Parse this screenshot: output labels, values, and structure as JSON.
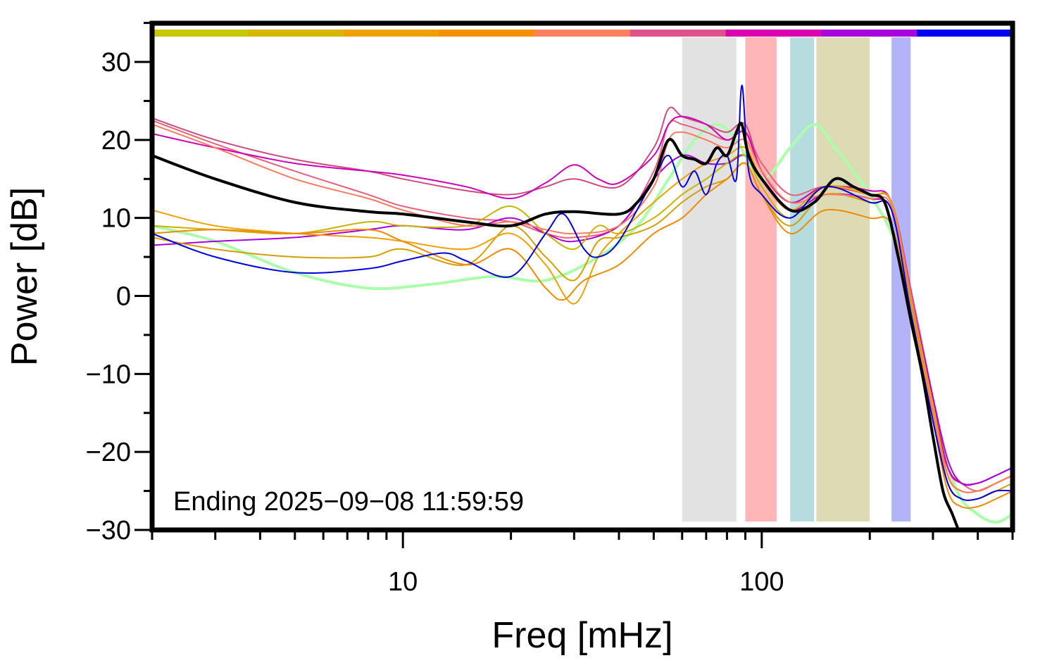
{
  "chart_data": {
    "type": "line",
    "title": "",
    "xlabel": "Freq [mHz]",
    "ylabel": "Power [dB]",
    "x_scale": "log",
    "xlim": [
      2,
      500
    ],
    "ylim": [
      -30,
      35
    ],
    "x_tick_labels": [
      "10",
      "100"
    ],
    "y_tick_labels": [
      "30",
      "20",
      "10",
      "0",
      "−10",
      "−20",
      "−30"
    ],
    "grid": false,
    "legend": "none",
    "annotation": "Ending 2025−09−08 11:59:59",
    "shaded_bands": [
      {
        "x": [
          60,
          85
        ],
        "color": "#e2e2e2"
      },
      {
        "x": [
          90,
          110
        ],
        "color": "#ffb6b6"
      },
      {
        "x": [
          120,
          140
        ],
        "color": "#b6dcdf"
      },
      {
        "x": [
          142,
          200
        ],
        "color": "#dcdbb3"
      },
      {
        "x": [
          230,
          260
        ],
        "color": "#b3b3f7"
      }
    ],
    "top_color_bar": [
      "#c8c800",
      "#d7b800",
      "#f0a000",
      "#f39000",
      "#ff8060",
      "#e0508a",
      "#dd00b0",
      "#aa00dd",
      "#0000f0"
    ],
    "series": [
      {
        "color": "#aaffaa",
        "width": 4,
        "x": [
          2,
          3,
          5,
          8,
          12,
          18,
          25,
          35,
          45,
          55,
          65,
          75,
          85,
          100,
          120,
          140,
          160,
          180,
          200,
          230,
          260,
          300,
          350,
          400,
          450,
          500
        ],
        "y": [
          9,
          7,
          3,
          1,
          1.5,
          2.5,
          2,
          5,
          9,
          15,
          20,
          22,
          20,
          15,
          19,
          22,
          19,
          16,
          13,
          8,
          0,
          -15,
          -25,
          -28,
          -29,
          -28
        ]
      },
      {
        "color": "#e8607a",
        "width": 2,
        "x": [
          2,
          3,
          5,
          8,
          10,
          15,
          20,
          25,
          30,
          40,
          50,
          55,
          60,
          70,
          80,
          90,
          100,
          120,
          150,
          200,
          230,
          260,
          300,
          330,
          360,
          400,
          450,
          500
        ],
        "y": [
          22.5,
          19.5,
          16,
          13,
          11.5,
          10,
          9.5,
          8,
          7.5,
          9,
          16,
          22,
          22,
          21,
          20,
          21,
          17,
          13,
          14,
          13,
          12,
          0,
          -15,
          -22,
          -24,
          -25,
          -24,
          -23
        ]
      },
      {
        "color": "#d04a80",
        "width": 2,
        "x": [
          2,
          3,
          5,
          8,
          10,
          15,
          20,
          25,
          30,
          40,
          50,
          55,
          60,
          70,
          80,
          90,
          100,
          120,
          150,
          200,
          230,
          260,
          300,
          330,
          360,
          400,
          450,
          500
        ],
        "y": [
          22.8,
          20,
          17.5,
          16,
          15,
          13.5,
          13,
          14,
          15,
          14,
          19,
          24,
          23,
          22,
          21,
          22,
          16,
          12,
          14,
          13,
          12,
          1,
          -13,
          -22,
          -24,
          -24,
          -23,
          -22
        ]
      },
      {
        "color": "#cc00bb",
        "width": 2,
        "x": [
          2,
          3,
          5,
          8,
          10,
          15,
          20,
          25,
          30,
          35,
          40,
          50,
          55,
          60,
          70,
          80,
          90,
          100,
          120,
          150,
          200,
          230,
          260,
          300,
          330,
          360,
          400,
          450,
          500
        ],
        "y": [
          20.8,
          19,
          17,
          16,
          15.5,
          14,
          12.5,
          14.5,
          16.8,
          15,
          14.5,
          18,
          22,
          23,
          22,
          20,
          21,
          16,
          12,
          14,
          13.5,
          12,
          0,
          -14,
          -22,
          -24,
          -24,
          -23,
          -22
        ]
      },
      {
        "color": "#aa00dd",
        "width": 2,
        "x": [
          2,
          3,
          5,
          8,
          10,
          15,
          20,
          25,
          30,
          40,
          50,
          60,
          70,
          80,
          90,
          100,
          120,
          150,
          200,
          230,
          260,
          300,
          330,
          360,
          400,
          450,
          500
        ],
        "y": [
          6.5,
          7,
          7.5,
          8.5,
          9,
          8.5,
          10,
          8,
          7,
          9,
          15,
          18,
          17,
          17,
          18,
          15,
          11,
          13,
          12.5,
          11,
          0,
          -13,
          -21,
          -24,
          -24,
          -23,
          -22
        ]
      },
      {
        "color": "#c8b400",
        "width": 2,
        "x": [
          2,
          3,
          5,
          8,
          10,
          15,
          20,
          25,
          30,
          35,
          40,
          50,
          60,
          70,
          80,
          90,
          100,
          120,
          150,
          200,
          230,
          260,
          300,
          330,
          360,
          400,
          450,
          500
        ],
        "y": [
          9,
          8.5,
          8,
          9.5,
          9,
          9,
          11.5,
          8,
          6,
          9,
          8,
          10,
          13,
          15,
          17,
          18,
          14,
          10,
          14,
          13,
          12,
          0,
          -14,
          -23,
          -25,
          -25,
          -24,
          -23
        ]
      },
      {
        "color": "#d4a000",
        "width": 2,
        "x": [
          2,
          3,
          5,
          8,
          10,
          15,
          20,
          25,
          30,
          35,
          40,
          50,
          60,
          70,
          80,
          90,
          100,
          120,
          150,
          200,
          230,
          260,
          300,
          330,
          360,
          400,
          450,
          500
        ],
        "y": [
          7.5,
          6,
          5,
          5,
          6,
          4,
          9,
          5,
          2,
          7,
          7.5,
          9,
          12,
          14,
          15,
          17,
          13,
          9,
          13,
          12,
          11,
          -1,
          -15,
          -24,
          -26,
          -26,
          -25,
          -24
        ]
      },
      {
        "color": "#f0a000",
        "width": 2,
        "x": [
          2,
          3,
          5,
          8,
          10,
          15,
          20,
          25,
          30,
          35,
          40,
          50,
          60,
          70,
          80,
          90,
          100,
          120,
          150,
          200,
          230,
          260,
          300,
          330,
          360,
          400,
          450,
          500
        ],
        "y": [
          11,
          9,
          8,
          7.5,
          7,
          6,
          8,
          4,
          -1,
          5,
          8,
          12,
          15,
          17,
          18,
          19,
          15,
          11,
          14,
          13,
          12,
          0,
          -14,
          -23,
          -25,
          -25,
          -24,
          -23
        ]
      },
      {
        "color": "#f08a00",
        "width": 2,
        "x": [
          2,
          3,
          5,
          8,
          10,
          15,
          20,
          25,
          28,
          32,
          40,
          50,
          60,
          70,
          80,
          90,
          100,
          120,
          150,
          200,
          230,
          260,
          300,
          330,
          360,
          400,
          450,
          500
        ],
        "y": [
          8,
          8.5,
          8,
          8.5,
          7,
          4,
          6,
          1,
          -0.5,
          2,
          4,
          8,
          10,
          13,
          15,
          17,
          13,
          8,
          11,
          10,
          9,
          -2,
          -16,
          -25,
          -27,
          -27,
          -26,
          -25
        ]
      },
      {
        "color": "#ff7a60",
        "width": 2,
        "x": [
          2,
          3,
          5,
          8,
          10,
          15,
          20,
          25,
          30,
          40,
          50,
          55,
          60,
          70,
          80,
          90,
          100,
          120,
          150,
          200,
          230,
          260,
          300,
          330,
          360,
          400,
          450,
          500
        ],
        "y": [
          22,
          19,
          15,
          12.5,
          11,
          9,
          9.5,
          8.5,
          8,
          9,
          14,
          20,
          21,
          20,
          19,
          20,
          16,
          12,
          13,
          12.5,
          11.5,
          0,
          -15,
          -23,
          -25,
          -25,
          -24,
          -23
        ]
      },
      {
        "color": "#0000e0",
        "width": 2,
        "x": [
          2,
          3,
          5,
          8,
          10,
          13,
          15,
          20,
          25,
          28,
          32,
          35,
          40,
          50,
          55,
          60,
          65,
          70,
          75,
          80,
          85,
          88,
          92,
          100,
          120,
          150,
          200,
          230,
          260,
          300,
          330,
          360,
          400,
          450,
          500
        ],
        "y": [
          8,
          5,
          3,
          3.5,
          4.5,
          5.5,
          4.5,
          2.5,
          8,
          10.5,
          6,
          5,
          7,
          15,
          18,
          14,
          16,
          13,
          17,
          18,
          15,
          27,
          16,
          13,
          10,
          14,
          12,
          11,
          -2,
          -16,
          -24,
          -26,
          -26,
          -25,
          -25
        ]
      },
      {
        "color": "#000000",
        "width": 4,
        "x": [
          2,
          3,
          5,
          8,
          10,
          15,
          20,
          25,
          30,
          40,
          45,
          50,
          55,
          60,
          65,
          70,
          75,
          80,
          85,
          88,
          92,
          100,
          120,
          140,
          160,
          180,
          200,
          220,
          240,
          260,
          280,
          300,
          320,
          340,
          360
        ],
        "y": [
          18,
          15,
          12,
          10.8,
          10.5,
          9.5,
          9,
          10.5,
          10.8,
          10.5,
          12,
          15,
          20,
          18,
          17.5,
          17,
          19,
          18,
          21,
          22,
          18,
          15,
          11,
          12,
          15,
          14,
          13,
          12,
          5,
          -3,
          -10,
          -18,
          -25,
          -28,
          -31
        ]
      }
    ]
  }
}
